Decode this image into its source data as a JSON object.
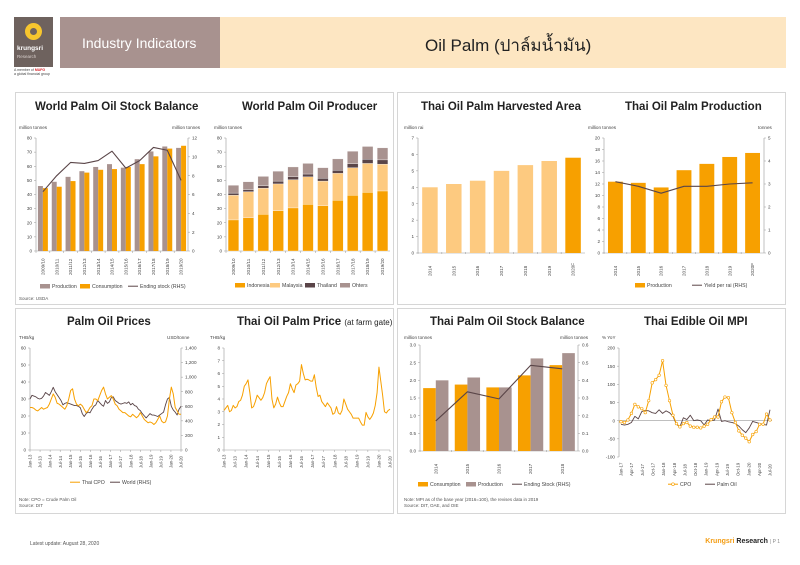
{
  "header": {
    "logo_brand": "krungsri",
    "logo_sub": "Research",
    "member_line1": "A member of",
    "member_mufg": "MUFG",
    "member_line2": "a global financial group",
    "section": "Industry Indicators",
    "title": "Oil Palm (ปาล์มน้ำมัน)"
  },
  "colors": {
    "orange": "#f7a000",
    "light_orange": "#fdca80",
    "taupe": "#a8928f",
    "dark_line": "#5a4548",
    "dark_taupe": "#5a4548",
    "grey_taupe": "#a8928f"
  },
  "chart_data": [
    {
      "id": "world-stock-balance",
      "type": "bar",
      "title": "World Palm Oil Stock Balance",
      "ylabel": "million tonnes",
      "y2label": "million tonnes",
      "ylim": [
        0,
        80
      ],
      "y2lim": [
        0,
        12
      ],
      "yticks": [
        0,
        10,
        20,
        30,
        40,
        50,
        60,
        70,
        80
      ],
      "y2ticks": [
        0,
        2,
        4,
        6,
        8,
        10,
        12
      ],
      "categories": [
        "2009/10",
        "2010/11",
        "2011/12",
        "2012/13",
        "2013/14",
        "2014/15",
        "2015/16",
        "2016/17",
        "2017/18",
        "2018/19",
        "2019/20"
      ],
      "series": [
        {
          "name": "Production",
          "kind": "bar",
          "values": [
            46,
            49,
            52.5,
            56.5,
            59.5,
            61.5,
            59,
            65,
            70.5,
            74,
            73
          ]
        },
        {
          "name": "Consumption",
          "kind": "bar",
          "values": [
            44.5,
            45.5,
            49.5,
            55.5,
            57.5,
            58,
            59.5,
            61.5,
            67,
            72.5,
            74.5
          ]
        },
        {
          "name": "Ending stock (RHS)",
          "kind": "line",
          "axis": "right",
          "values": [
            6.3,
            8.0,
            9.4,
            9.3,
            9.6,
            10.6,
            8.8,
            9.6,
            11.0,
            10.7,
            7.5
          ]
        }
      ],
      "note": "Source: USDA"
    },
    {
      "id": "world-producer",
      "type": "stacked-bar",
      "title": "World Palm Oil Producer",
      "ylabel": "million tonnes",
      "ylim": [
        0,
        80
      ],
      "yticks": [
        0,
        10,
        20,
        30,
        40,
        50,
        60,
        70,
        80
      ],
      "categories": [
        "2009/10",
        "2010/11",
        "2011/12",
        "2012/13",
        "2013/14",
        "2014/15",
        "2015/16",
        "2016/17",
        "2017/18",
        "2018/19",
        "2019/20"
      ],
      "series": [
        {
          "name": "Indonesia",
          "values": [
            22,
            23.5,
            26,
            28.5,
            30.5,
            33,
            32,
            36,
            39.5,
            41.5,
            42.5
          ]
        },
        {
          "name": "Malaysia",
          "values": [
            17.5,
            18.5,
            18.5,
            19,
            20,
            19.5,
            17.5,
            19,
            19.5,
            20.5,
            19
          ]
        },
        {
          "name": "Thailand",
          "values": [
            1.5,
            1.5,
            1.8,
            2,
            2,
            2,
            2,
            2.2,
            2.8,
            3,
            3
          ]
        },
        {
          "name": "Ohters",
          "values": [
            5.5,
            5.5,
            6.5,
            7,
            7,
            7.5,
            7.5,
            8,
            8.8,
            9,
            8.5
          ]
        }
      ]
    },
    {
      "id": "thai-harvested-area",
      "type": "bar",
      "title": "Thai Oil Palm Harvested Area",
      "ylabel": "million rai",
      "ylim": [
        0,
        7
      ],
      "yticks": [
        0,
        1,
        2,
        3,
        4,
        5,
        6,
        7
      ],
      "categories": [
        "2014",
        "2015",
        "2016",
        "2017",
        "2018",
        "2019",
        "2020F"
      ],
      "values": [
        4.0,
        4.2,
        4.4,
        5.0,
        5.35,
        5.6,
        5.8
      ],
      "highlight_last": true
    },
    {
      "id": "thai-production",
      "type": "bar",
      "title": "Thai Oil Palm Production",
      "ylabel": "million tonnes",
      "y2label": "tonnes",
      "ylim": [
        0,
        20
      ],
      "y2lim": [
        0,
        5
      ],
      "yticks": [
        0,
        2,
        4,
        6,
        8,
        10,
        12,
        14,
        16,
        18,
        20
      ],
      "y2ticks": [
        0,
        1,
        2,
        3,
        4,
        5
      ],
      "categories": [
        "2014",
        "2015",
        "2016",
        "2017",
        "2018",
        "2019",
        "2020F"
      ],
      "series": [
        {
          "name": "Production",
          "kind": "bar",
          "values": [
            12.4,
            12.2,
            11.4,
            14.4,
            15.5,
            16.7,
            17.4
          ]
        },
        {
          "name": "Yield per rai (RHS)",
          "kind": "line",
          "axis": "right",
          "values": [
            3.1,
            2.9,
            2.6,
            2.9,
            2.9,
            3.0,
            3.05
          ]
        }
      ]
    },
    {
      "id": "palm-oil-prices",
      "type": "line",
      "title": "Palm Oil Prices",
      "ylabel": "THB/kg",
      "y2label": "USD/tonne",
      "ylim": [
        0,
        60
      ],
      "y2lim": [
        0,
        1400
      ],
      "yticks": [
        0,
        10,
        20,
        30,
        40,
        50,
        60
      ],
      "y2ticks": [
        "0",
        "200",
        "400",
        "600",
        "800",
        "1,000",
        "1,200",
        "1,400"
      ],
      "xticks": [
        "Jan-13",
        "Jul-13",
        "Jan-14",
        "Jul-14",
        "Jan-15",
        "Jul-15",
        "Jan-16",
        "Jul-16",
        "Jan-17",
        "Jul-17",
        "Jan-18",
        "Jul-18",
        "Jan-19",
        "Jul-19",
        "Jan-20",
        "Jul-20"
      ],
      "series": [
        {
          "name": "Thai CPO",
          "axis": "left",
          "values": [
            25,
            25,
            24.5,
            23.5,
            23,
            24,
            25,
            24,
            24.5,
            25,
            27,
            30,
            33,
            31,
            27.5,
            27,
            26,
            25,
            24,
            26,
            30,
            35,
            36,
            30,
            27,
            26,
            27,
            26,
            24,
            22,
            23,
            25,
            26,
            30,
            30,
            29,
            32,
            35,
            37,
            33,
            30,
            31,
            32,
            30,
            27,
            26,
            24,
            23,
            22,
            22,
            21,
            20,
            19.5,
            21,
            20,
            19,
            20,
            22,
            20,
            18,
            17,
            16,
            16.5,
            16,
            15,
            16,
            18,
            20,
            17,
            16,
            16.5,
            20,
            30,
            37,
            33,
            25,
            23,
            21,
            21
          ]
        },
        {
          "name": "World (RHS)",
          "axis": "right",
          "values": [
            700,
            750,
            740,
            730,
            710,
            700,
            710,
            740,
            790,
            770,
            750,
            800,
            860,
            800,
            760,
            720,
            680,
            620,
            640,
            650,
            640,
            630,
            620,
            610,
            610,
            600,
            580,
            500,
            460,
            500,
            520,
            510,
            560,
            600,
            620,
            680,
            650,
            620,
            600,
            680,
            640,
            660,
            720,
            730,
            680,
            660,
            640,
            630,
            640,
            650,
            640,
            660,
            620,
            640,
            610,
            600,
            560,
            540,
            500,
            470,
            440,
            470,
            500,
            480,
            480,
            470,
            460,
            480,
            500,
            520,
            620,
            700,
            720,
            600,
            550,
            520,
            480,
            560,
            600
          ]
        }
      ],
      "note": "Note: CPO = Crude Palm Oil",
      "source": "Source: DIT"
    },
    {
      "id": "thai-farm-gate-price",
      "type": "line",
      "title": "Thai Oil Palm Price",
      "title_suffix": "(at farm gate)",
      "ylabel": "THB/kg",
      "ylim": [
        0,
        8
      ],
      "yticks": [
        0,
        1,
        2,
        3,
        4,
        5,
        6,
        7,
        8
      ],
      "xticks": [
        "Jan-13",
        "Jul-13",
        "Jan-14",
        "Jul-14",
        "Jan-15",
        "Jul-15",
        "Jan-16",
        "Jul-16",
        "Jan-17",
        "Jul-17",
        "Jan-18",
        "Jul-18",
        "Jan-19",
        "Jul-19",
        "Jan-20",
        "Jul-20"
      ],
      "series": [
        {
          "name": "Thai oil palm farm gate price",
          "values": [
            3.1,
            3.3,
            3.5,
            3.0,
            3.1,
            3.5,
            3.3,
            3.4,
            3.8,
            3.9,
            4.3,
            5.0,
            5.2,
            5.5,
            4.5,
            3.3,
            3.4,
            3.8,
            4.3,
            4.1,
            3.9,
            4.1,
            4.5,
            5.2,
            5.5,
            5.75,
            4.0,
            3.3,
            3.6,
            4.15,
            3.7,
            3.4,
            3.4,
            3.8,
            4.2,
            4.5,
            5.2,
            4.8,
            4.5,
            5.1,
            5.2,
            5.4,
            6.7,
            6.0,
            5.5,
            5.55,
            5.5,
            5.4,
            5.4,
            5.9,
            4.9,
            4.2,
            4.3,
            3.8,
            3.6,
            3.4,
            3.7,
            3.5,
            3.3,
            2.8,
            2.9,
            3.4,
            2.9,
            2.8,
            3.1,
            4.0,
            3.6,
            3.2,
            3.0,
            2.8,
            2.5,
            2.5,
            2.5,
            2.5,
            2.2,
            1.95,
            1.95,
            2.95,
            2.6,
            2.4,
            2.6,
            2.9,
            3.5,
            4.5,
            6.5,
            5.4,
            4.3,
            3.0,
            2.9,
            3.1,
            3.2
          ]
        }
      ]
    },
    {
      "id": "thai-stock-balance",
      "type": "bar",
      "title": "Thai Palm Oil Stock Balance",
      "ylabel": "million tonnes",
      "y2label": "million tonnes",
      "ylim": [
        0,
        3.0
      ],
      "y2lim": [
        0,
        0.6
      ],
      "yticks": [
        "0.0",
        "0.5",
        "1.0",
        "1.5",
        "2.0",
        "2.5",
        "3.0"
      ],
      "y2ticks": [
        "0.0",
        "0.1",
        "0.2",
        "0.3",
        "0.4",
        "0.5",
        "0.6"
      ],
      "categories": [
        "2014",
        "2015",
        "2016",
        "2017",
        "2018"
      ],
      "series": [
        {
          "name": "Consumption",
          "kind": "bar",
          "values": [
            1.78,
            1.88,
            1.8,
            2.14,
            2.43
          ]
        },
        {
          "name": "Production",
          "kind": "bar",
          "values": [
            2.0,
            2.08,
            1.8,
            2.62,
            2.77
          ]
        },
        {
          "name": "Ending Stock (RHS)",
          "kind": "line",
          "axis": "right",
          "values": [
            0.17,
            0.335,
            0.295,
            0.485,
            0.465
          ]
        }
      ],
      "note": "Note: MPI as of the base year (2016=100), the revises data in 2019",
      "source": "Source: DIT, OAE, and OIE"
    },
    {
      "id": "thai-edible-oil-mpi",
      "type": "line",
      "title": "Thai Edible Oil MPI",
      "ylabel": "% YoY",
      "ylim": [
        -100,
        200
      ],
      "yticks": [
        -100,
        -50,
        0,
        50,
        100,
        150,
        200
      ],
      "xticks": [
        "Jan-17",
        "Apr-17",
        "Jul-17",
        "Oct-17",
        "Jan-18",
        "Apr-18",
        "Jul-18",
        "Oct-18",
        "Jan-19",
        "Apr-19",
        "Jul-19",
        "Oct-19",
        "Jan-20",
        "Apr-20",
        "Jul-20"
      ],
      "series": [
        {
          "name": "CPO",
          "markers": true,
          "values": [
            -3,
            -5,
            2,
            20,
            45,
            38,
            33,
            22,
            55,
            104,
            113,
            125,
            165,
            97,
            55,
            15,
            -8,
            -17,
            -8,
            -5,
            -15,
            -18,
            -18,
            -20,
            -15,
            -10,
            3,
            10,
            10,
            52,
            65,
            63,
            22,
            -5,
            -28,
            -40,
            -48,
            -58,
            -38,
            -30,
            -10,
            -10,
            18,
            2
          ]
        },
        {
          "name": "Palm Oil",
          "markers": false,
          "values": [
            -10,
            -12,
            -10,
            -5,
            12,
            5,
            25,
            28,
            27,
            22,
            20,
            30,
            20,
            27,
            22,
            12,
            -10,
            -17,
            8,
            3,
            15,
            0,
            2,
            0,
            -12,
            2,
            0,
            2,
            32,
            -2,
            0,
            -3,
            -5,
            -8,
            -15,
            -25,
            -33,
            -20,
            -2,
            -5,
            -8,
            -10,
            -12,
            30
          ]
        }
      ]
    }
  ],
  "charts_text": {
    "wsb": {
      "title": "World Palm Oil Stock Balance",
      "ylabel": "million tonnes",
      "y2label": "million tonnes",
      "legend": [
        "Production",
        "Consumption",
        "Ending stock (RHS)"
      ],
      "source": "Source: USDA"
    },
    "wpp": {
      "title": "World Palm Oil Producer",
      "ylabel": "million tonnes",
      "legend": [
        "Indonesia",
        "Malaysia",
        "Thailand",
        "Ohters"
      ]
    },
    "tha": {
      "title": "Thai Oil Palm Harvested Area",
      "ylabel": "million rai"
    },
    "tpp": {
      "title": "Thai Oil Palm Production",
      "ylabel": "million tonnes",
      "y2label": "tonnes",
      "legend": [
        "Production",
        "Yield per rai (RHS)"
      ]
    },
    "pop": {
      "title": "Palm Oil Prices",
      "ylabel": "THB/kg",
      "y2label": "USD/tonne",
      "legend": [
        "Thai CPO",
        "World (RHS)"
      ],
      "note": "Note: CPO = Crude Palm Oil",
      "source": "Source: DIT"
    },
    "tfg": {
      "title": "Thai Oil Palm Price",
      "title_suffix": "(at farm gate)",
      "ylabel": "THB/kg"
    },
    "tsb": {
      "title": "Thai Palm Oil Stock Balance",
      "ylabel": "million tonnes",
      "y2label": "million tonnes",
      "legend": [
        "Consumption",
        "Production",
        "Ending Stock (RHS)"
      ],
      "note": "Note: MPI as of the base year (2016=100), the revises data in 2019",
      "source": "Source: DIT, OAE, and OIE"
    },
    "mpi": {
      "title": "Thai Edible Oil MPI",
      "ylabel": "% YoY",
      "legend": [
        "CPO",
        "Palm Oil"
      ]
    }
  },
  "footer": {
    "updated": "Latest update: August 28, 2020",
    "brand_k": "Krungsri",
    "brand_r": "Research",
    "page": "| P 1"
  }
}
